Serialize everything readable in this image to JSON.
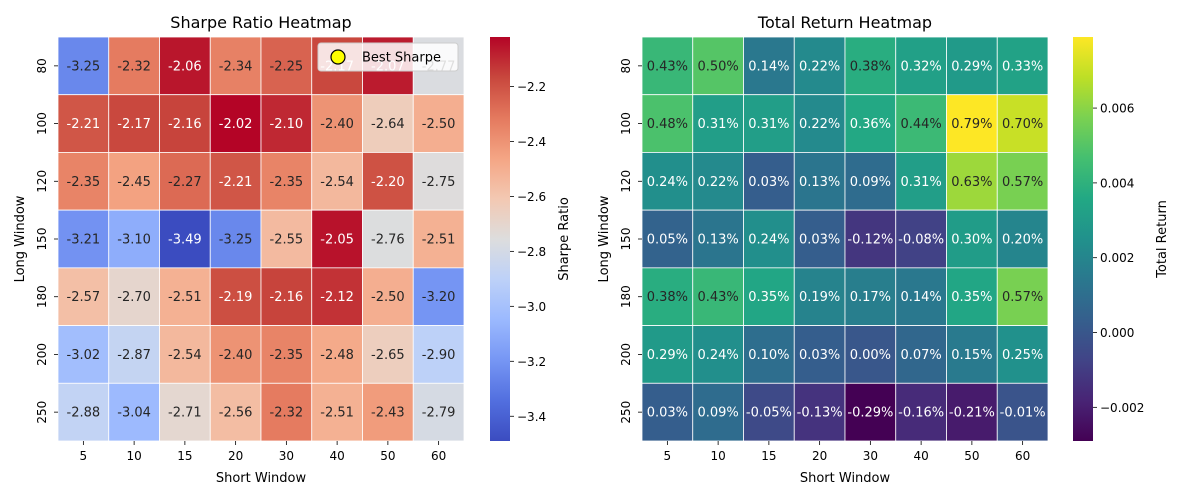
{
  "chart_data": [
    {
      "type": "heatmap",
      "title": "Sharpe Ratio Heatmap",
      "xlabel": "Short Window",
      "ylabel": "Long Window",
      "x_categories": [
        "5",
        "10",
        "15",
        "20",
        "30",
        "40",
        "50",
        "60"
      ],
      "y_categories": [
        "80",
        "100",
        "120",
        "150",
        "180",
        "200",
        "250"
      ],
      "values": [
        [
          -3.25,
          -2.32,
          -2.06,
          -2.34,
          -2.25,
          -2.17,
          -2.07,
          -2.77
        ],
        [
          -2.21,
          -2.17,
          -2.16,
          -2.02,
          -2.1,
          -2.4,
          -2.64,
          -2.5
        ],
        [
          -2.35,
          -2.45,
          -2.27,
          -2.21,
          -2.35,
          -2.54,
          -2.2,
          -2.75
        ],
        [
          -3.21,
          -3.1,
          -3.49,
          -3.25,
          -2.55,
          -2.05,
          -2.76,
          -2.51
        ],
        [
          -2.57,
          -2.7,
          -2.51,
          -2.19,
          -2.16,
          -2.12,
          -2.5,
          -3.2
        ],
        [
          -3.02,
          -2.87,
          -2.54,
          -2.4,
          -2.35,
          -2.48,
          -2.65,
          -2.9
        ],
        [
          -2.88,
          -3.04,
          -2.71,
          -2.56,
          -2.32,
          -2.51,
          -2.43,
          -2.79
        ]
      ],
      "labels": [
        [
          "-3.25",
          "-2.32",
          "-2.06",
          "-2.34",
          "-2.25",
          "-2.17",
          "-2.07",
          "-2.77"
        ],
        [
          "-2.21",
          "-2.17",
          "-2.16",
          "-2.02",
          "-2.10",
          "-2.40",
          "-2.64",
          "-2.50"
        ],
        [
          "-2.35",
          "-2.45",
          "-2.27",
          "-2.21",
          "-2.35",
          "-2.54",
          "-2.20",
          "-2.75"
        ],
        [
          "-3.21",
          "-3.10",
          "-3.49",
          "-3.25",
          "-2.55",
          "-2.05",
          "-2.76",
          "-2.51"
        ],
        [
          "-2.57",
          "-2.70",
          "-2.51",
          "-2.19",
          "-2.16",
          "-2.12",
          "-2.50",
          "-3.20"
        ],
        [
          "-3.02",
          "-2.87",
          "-2.54",
          "-2.40",
          "-2.35",
          "-2.48",
          "-2.65",
          "-2.90"
        ],
        [
          "-2.88",
          "-3.04",
          "-2.71",
          "-2.56",
          "-2.32",
          "-2.51",
          "-2.43",
          "-2.79"
        ]
      ],
      "colormap": "coolwarm",
      "vmin": -3.49,
      "vmax": -2.02,
      "colorbar_label": "Sharpe Ratio",
      "colorbar_ticks": [
        -2.2,
        -2.4,
        -2.6,
        -2.8,
        -3.0,
        -3.2,
        -3.4
      ],
      "colorbar_tick_labels": [
        "−2.2",
        "−2.4",
        "−2.6",
        "−2.8",
        "−3.0",
        "−3.2",
        "−3.4"
      ],
      "legend": {
        "label": "Best Sharpe",
        "placement": "top-right",
        "marker_color": "#ffff00"
      },
      "grid": false
    },
    {
      "type": "heatmap",
      "title": "Total Return Heatmap",
      "xlabel": "Short Window",
      "ylabel": "Long Window",
      "x_categories": [
        "5",
        "10",
        "15",
        "20",
        "30",
        "40",
        "50",
        "60"
      ],
      "y_categories": [
        "80",
        "100",
        "120",
        "150",
        "180",
        "200",
        "250"
      ],
      "values": [
        [
          0.0043,
          0.005,
          0.0014,
          0.0022,
          0.0038,
          0.0032,
          0.0029,
          0.0033
        ],
        [
          0.0048,
          0.0031,
          0.0031,
          0.0022,
          0.0036,
          0.0044,
          0.0079,
          0.007
        ],
        [
          0.0024,
          0.0022,
          0.0003,
          0.0013,
          0.0009,
          0.0031,
          0.0063,
          0.0057
        ],
        [
          0.0005,
          0.0013,
          0.0024,
          0.0003,
          -0.0012,
          -0.0008,
          0.003,
          0.002
        ],
        [
          0.0038,
          0.0043,
          0.0035,
          0.0019,
          0.0017,
          0.0014,
          0.0035,
          0.0057
        ],
        [
          0.0029,
          0.0024,
          0.001,
          0.0003,
          0.0,
          0.0007,
          0.0015,
          0.0025
        ],
        [
          0.0003,
          0.0009,
          -0.0005,
          -0.0013,
          -0.0029,
          -0.0016,
          -0.0021,
          -0.0001
        ]
      ],
      "labels": [
        [
          "0.43%",
          "0.50%",
          "0.14%",
          "0.22%",
          "0.38%",
          "0.32%",
          "0.29%",
          "0.33%"
        ],
        [
          "0.48%",
          "0.31%",
          "0.31%",
          "0.22%",
          "0.36%",
          "0.44%",
          "0.79%",
          "0.70%"
        ],
        [
          "0.24%",
          "0.22%",
          "0.03%",
          "0.13%",
          "0.09%",
          "0.31%",
          "0.63%",
          "0.57%"
        ],
        [
          "0.05%",
          "0.13%",
          "0.24%",
          "0.03%",
          "-0.12%",
          "-0.08%",
          "0.30%",
          "0.20%"
        ],
        [
          "0.38%",
          "0.43%",
          "0.35%",
          "0.19%",
          "0.17%",
          "0.14%",
          "0.35%",
          "0.57%"
        ],
        [
          "0.29%",
          "0.24%",
          "0.10%",
          "0.03%",
          "0.00%",
          "0.07%",
          "0.15%",
          "0.25%"
        ],
        [
          "0.03%",
          "0.09%",
          "-0.05%",
          "-0.13%",
          "-0.29%",
          "-0.16%",
          "-0.21%",
          "-0.01%"
        ]
      ],
      "colormap": "viridis",
      "vmin": -0.0029,
      "vmax": 0.0079,
      "colorbar_label": "Total Return",
      "colorbar_ticks": [
        0.006,
        0.004,
        0.002,
        0.0,
        -0.002
      ],
      "colorbar_tick_labels": [
        "0.006",
        "0.004",
        "0.002",
        "0.000",
        "−0.002"
      ],
      "grid": false
    }
  ]
}
